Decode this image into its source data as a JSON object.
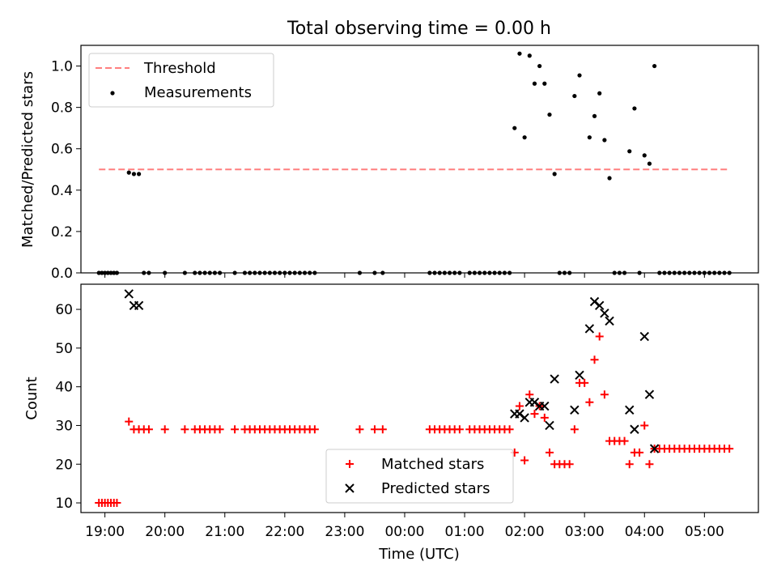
{
  "chart_data": [
    {
      "type": "scatter",
      "title": "Total observing time = 0.00 h",
      "xlabel": "",
      "ylabel": "Matched/Predicted stars",
      "xlim": [
        "18:36",
        "05:54"
      ],
      "ylim": [
        0,
        1.1
      ],
      "yticks": [
        "0.0",
        "0.2",
        "0.4",
        "0.6",
        "0.8",
        "1.0"
      ],
      "grid": false,
      "legend_position": "top-left",
      "colors": {
        "threshold": "#ff7f7f",
        "measurements": "#000000"
      },
      "threshold": {
        "name": "Threshold",
        "value": 0.5,
        "x_range": [
          "18:54",
          "05:24"
        ]
      },
      "series": [
        {
          "name": "Measurements",
          "points": [
            [
              "18:54",
              0
            ],
            [
              "18:57",
              0
            ],
            [
              "19:00",
              0
            ],
            [
              "19:03",
              0
            ],
            [
              "19:06",
              0
            ],
            [
              "19:09",
              0
            ],
            [
              "19:12",
              0
            ],
            [
              "19:24",
              0.485
            ],
            [
              "19:29",
              0.478
            ],
            [
              "19:34",
              0.478
            ],
            [
              "19:39",
              0
            ],
            [
              "19:44",
              0
            ],
            [
              "20:00",
              0
            ],
            [
              "20:20",
              0
            ],
            [
              "20:30",
              0
            ],
            [
              "20:35",
              0
            ],
            [
              "20:40",
              0
            ],
            [
              "20:45",
              0
            ],
            [
              "20:50",
              0
            ],
            [
              "20:55",
              0
            ],
            [
              "21:10",
              0
            ],
            [
              "21:20",
              0
            ],
            [
              "21:25",
              0
            ],
            [
              "21:30",
              0
            ],
            [
              "21:35",
              0
            ],
            [
              "21:40",
              0
            ],
            [
              "21:45",
              0
            ],
            [
              "21:50",
              0
            ],
            [
              "21:55",
              0
            ],
            [
              "22:00",
              0
            ],
            [
              "22:05",
              0
            ],
            [
              "22:10",
              0
            ],
            [
              "22:15",
              0
            ],
            [
              "22:20",
              0
            ],
            [
              "22:25",
              0
            ],
            [
              "22:30",
              0
            ],
            [
              "23:15",
              0
            ],
            [
              "23:30",
              0
            ],
            [
              "23:38",
              0
            ],
            [
              "00:25",
              0
            ],
            [
              "00:30",
              0
            ],
            [
              "00:35",
              0
            ],
            [
              "00:40",
              0
            ],
            [
              "00:45",
              0
            ],
            [
              "00:50",
              0
            ],
            [
              "00:55",
              0
            ],
            [
              "01:05",
              0
            ],
            [
              "01:10",
              0
            ],
            [
              "01:15",
              0
            ],
            [
              "01:20",
              0
            ],
            [
              "01:25",
              0
            ],
            [
              "01:30",
              0
            ],
            [
              "01:35",
              0
            ],
            [
              "01:40",
              0
            ],
            [
              "01:45",
              0
            ],
            [
              "01:50",
              0.7
            ],
            [
              "01:55",
              1.06
            ],
            [
              "02:00",
              0.655
            ],
            [
              "02:05",
              1.05
            ],
            [
              "02:10",
              0.915
            ],
            [
              "02:15",
              1.0
            ],
            [
              "02:20",
              0.915
            ],
            [
              "02:25",
              0.765
            ],
            [
              "02:30",
              0.478
            ],
            [
              "02:35",
              0
            ],
            [
              "02:40",
              0
            ],
            [
              "02:45",
              0
            ],
            [
              "02:50",
              0.855
            ],
            [
              "02:55",
              0.955
            ],
            [
              "03:05",
              0.655
            ],
            [
              "03:10",
              0.758
            ],
            [
              "03:15",
              0.868
            ],
            [
              "03:20",
              0.642
            ],
            [
              "03:25",
              0.458
            ],
            [
              "03:30",
              0
            ],
            [
              "03:35",
              0
            ],
            [
              "03:40",
              0
            ],
            [
              "03:45",
              0.588
            ],
            [
              "03:50",
              0.795
            ],
            [
              "03:55",
              0
            ],
            [
              "04:00",
              0.568
            ],
            [
              "04:05",
              0.528
            ],
            [
              "04:10",
              1.0
            ],
            [
              "04:15",
              0
            ],
            [
              "04:20",
              0
            ],
            [
              "04:25",
              0
            ],
            [
              "04:30",
              0
            ],
            [
              "04:35",
              0
            ],
            [
              "04:40",
              0
            ],
            [
              "04:45",
              0
            ],
            [
              "04:50",
              0
            ],
            [
              "04:55",
              0
            ],
            [
              "05:00",
              0
            ],
            [
              "05:05",
              0
            ],
            [
              "05:10",
              0
            ],
            [
              "05:15",
              0
            ],
            [
              "05:20",
              0
            ],
            [
              "05:25",
              0
            ]
          ]
        }
      ]
    },
    {
      "type": "scatter",
      "title": "",
      "xlabel": "Time (UTC)",
      "ylabel": "Count",
      "xlim": [
        "18:36",
        "05:54"
      ],
      "ylim": [
        7.5,
        66.5
      ],
      "yticks": [
        "10",
        "20",
        "30",
        "40",
        "50",
        "60"
      ],
      "xticks": [
        "19:00",
        "20:00",
        "21:00",
        "22:00",
        "23:00",
        "00:00",
        "01:00",
        "02:00",
        "03:00",
        "04:00",
        "05:00"
      ],
      "grid": false,
      "legend_position": "bottom-center",
      "colors": {
        "matched": "#ff0000",
        "predicted": "#000000"
      },
      "series": [
        {
          "name": "Matched stars",
          "points": [
            [
              "18:54",
              10
            ],
            [
              "18:57",
              10
            ],
            [
              "19:00",
              10
            ],
            [
              "19:03",
              10
            ],
            [
              "19:06",
              10
            ],
            [
              "19:09",
              10
            ],
            [
              "19:12",
              10
            ],
            [
              "19:24",
              31
            ],
            [
              "19:29",
              29
            ],
            [
              "19:34",
              29
            ],
            [
              "19:39",
              29
            ],
            [
              "19:44",
              29
            ],
            [
              "20:00",
              29
            ],
            [
              "20:20",
              29
            ],
            [
              "20:30",
              29
            ],
            [
              "20:35",
              29
            ],
            [
              "20:40",
              29
            ],
            [
              "20:45",
              29
            ],
            [
              "20:50",
              29
            ],
            [
              "20:55",
              29
            ],
            [
              "21:10",
              29
            ],
            [
              "21:20",
              29
            ],
            [
              "21:25",
              29
            ],
            [
              "21:30",
              29
            ],
            [
              "21:35",
              29
            ],
            [
              "21:40",
              29
            ],
            [
              "21:45",
              29
            ],
            [
              "21:50",
              29
            ],
            [
              "21:55",
              29
            ],
            [
              "22:00",
              29
            ],
            [
              "22:05",
              29
            ],
            [
              "22:10",
              29
            ],
            [
              "22:15",
              29
            ],
            [
              "22:20",
              29
            ],
            [
              "22:25",
              29
            ],
            [
              "22:30",
              29
            ],
            [
              "23:15",
              29
            ],
            [
              "23:30",
              29
            ],
            [
              "23:38",
              29
            ],
            [
              "00:25",
              29
            ],
            [
              "00:30",
              29
            ],
            [
              "00:35",
              29
            ],
            [
              "00:40",
              29
            ],
            [
              "00:45",
              29
            ],
            [
              "00:50",
              29
            ],
            [
              "00:55",
              29
            ],
            [
              "01:05",
              29
            ],
            [
              "01:10",
              29
            ],
            [
              "01:15",
              29
            ],
            [
              "01:20",
              29
            ],
            [
              "01:25",
              29
            ],
            [
              "01:30",
              29
            ],
            [
              "01:35",
              29
            ],
            [
              "01:40",
              29
            ],
            [
              "01:45",
              29
            ],
            [
              "01:50",
              23
            ],
            [
              "01:55",
              35
            ],
            [
              "02:00",
              21
            ],
            [
              "02:05",
              38
            ],
            [
              "02:10",
              33
            ],
            [
              "02:15",
              35
            ],
            [
              "02:20",
              32
            ],
            [
              "02:25",
              23
            ],
            [
              "02:30",
              20
            ],
            [
              "02:35",
              20
            ],
            [
              "02:40",
              20
            ],
            [
              "02:45",
              20
            ],
            [
              "02:50",
              29
            ],
            [
              "02:55",
              41
            ],
            [
              "03:00",
              41
            ],
            [
              "03:05",
              36
            ],
            [
              "03:10",
              47
            ],
            [
              "03:15",
              53
            ],
            [
              "03:20",
              38
            ],
            [
              "03:25",
              26
            ],
            [
              "03:30",
              26
            ],
            [
              "03:35",
              26
            ],
            [
              "03:40",
              26
            ],
            [
              "03:45",
              20
            ],
            [
              "03:50",
              23
            ],
            [
              "03:55",
              23
            ],
            [
              "04:00",
              30
            ],
            [
              "04:05",
              20
            ],
            [
              "04:10",
              24
            ],
            [
              "04:15",
              24
            ],
            [
              "04:20",
              24
            ],
            [
              "04:25",
              24
            ],
            [
              "04:30",
              24
            ],
            [
              "04:35",
              24
            ],
            [
              "04:40",
              24
            ],
            [
              "04:45",
              24
            ],
            [
              "04:50",
              24
            ],
            [
              "04:55",
              24
            ],
            [
              "05:00",
              24
            ],
            [
              "05:05",
              24
            ],
            [
              "05:10",
              24
            ],
            [
              "05:15",
              24
            ],
            [
              "05:20",
              24
            ],
            [
              "05:25",
              24
            ]
          ]
        },
        {
          "name": "Predicted stars",
          "points": [
            [
              "19:24",
              64
            ],
            [
              "19:29",
              61
            ],
            [
              "19:34",
              61
            ],
            [
              "01:50",
              33
            ],
            [
              "01:55",
              33
            ],
            [
              "02:00",
              32
            ],
            [
              "02:05",
              36
            ],
            [
              "02:10",
              36
            ],
            [
              "02:15",
              35
            ],
            [
              "02:20",
              35
            ],
            [
              "02:25",
              30
            ],
            [
              "02:30",
              42
            ],
            [
              "02:50",
              34
            ],
            [
              "02:55",
              43
            ],
            [
              "03:05",
              55
            ],
            [
              "03:10",
              62
            ],
            [
              "03:15",
              61
            ],
            [
              "03:20",
              59
            ],
            [
              "03:25",
              57
            ],
            [
              "03:45",
              34
            ],
            [
              "03:50",
              29
            ],
            [
              "04:00",
              53
            ],
            [
              "04:05",
              38
            ],
            [
              "04:10",
              24
            ]
          ]
        }
      ]
    }
  ]
}
